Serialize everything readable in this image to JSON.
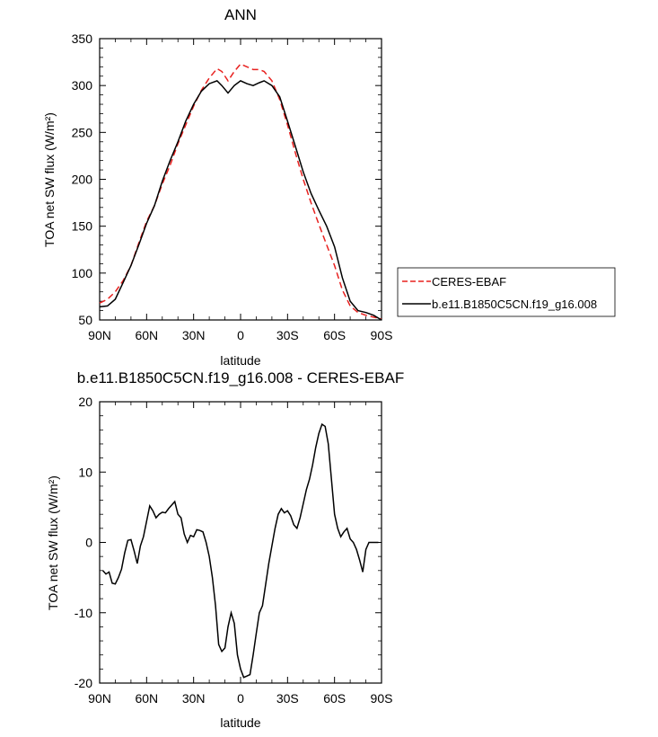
{
  "chart_data": [
    {
      "type": "line",
      "title": "ANN",
      "xlabel": "latitude",
      "ylabel": "TOA net SW flux (W/m²)",
      "xlim": [
        90,
        -90
      ],
      "ylim": [
        50,
        350
      ],
      "x_ticks": [
        90,
        60,
        30,
        0,
        -30,
        -60,
        -90
      ],
      "x_tick_labels": [
        "90N",
        "60N",
        "30N",
        "0",
        "30S",
        "60S",
        "90S"
      ],
      "y_ticks": [
        50,
        100,
        150,
        200,
        250,
        300,
        350
      ],
      "y_tick_labels": [
        "50",
        "100",
        "150",
        "200",
        "250",
        "300",
        "350"
      ],
      "legend_position": "right",
      "series": [
        {
          "name": "CERES-EBAF",
          "color": "#e8211f",
          "dash": "dashed",
          "x": [
            90,
            85,
            80,
            75,
            70,
            65,
            60,
            55,
            50,
            45,
            40,
            35,
            30,
            25,
            20,
            15,
            12,
            8,
            4,
            0,
            -4,
            -8,
            -12,
            -15,
            -20,
            -25,
            -30,
            -35,
            -40,
            -45,
            -50,
            -55,
            -60,
            -65,
            -70,
            -75,
            -80,
            -85,
            -90
          ],
          "y": [
            68,
            72,
            80,
            92,
            108,
            132,
            155,
            172,
            195,
            215,
            238,
            258,
            278,
            295,
            308,
            318,
            315,
            305,
            315,
            323,
            320,
            317,
            317,
            315,
            305,
            285,
            258,
            228,
            200,
            175,
            152,
            130,
            108,
            82,
            65,
            58,
            55,
            53,
            51
          ]
        },
        {
          "name": "b.e11.B1850C5CN.f19_g16.008",
          "color": "#000000",
          "dash": "solid",
          "x": [
            90,
            85,
            80,
            75,
            70,
            65,
            60,
            55,
            50,
            45,
            40,
            35,
            30,
            25,
            20,
            15,
            12,
            8,
            4,
            0,
            -4,
            -8,
            -12,
            -15,
            -20,
            -25,
            -30,
            -35,
            -40,
            -45,
            -50,
            -55,
            -60,
            -65,
            -70,
            -75,
            -80,
            -85,
            -90
          ],
          "y": [
            64,
            65,
            72,
            90,
            108,
            130,
            153,
            172,
            198,
            220,
            240,
            262,
            280,
            294,
            302,
            305,
            300,
            292,
            300,
            305,
            302,
            300,
            303,
            305,
            300,
            288,
            262,
            235,
            208,
            185,
            167,
            150,
            128,
            95,
            70,
            60,
            58,
            55,
            50
          ]
        }
      ]
    },
    {
      "type": "line",
      "title": "b.e11.B1850C5CN.f19_g16.008 - CERES-EBAF",
      "xlabel": "latitude",
      "ylabel": "TOA net SW flux (W/m²)",
      "xlim": [
        90,
        -90
      ],
      "ylim": [
        -20,
        20
      ],
      "x_ticks": [
        90,
        60,
        30,
        0,
        -30,
        -60,
        -90
      ],
      "x_tick_labels": [
        "90N",
        "60N",
        "30N",
        "0",
        "30S",
        "60S",
        "90S"
      ],
      "y_ticks": [
        -20,
        -10,
        0,
        10,
        20
      ],
      "y_tick_labels": [
        "-20",
        "-10",
        "0",
        "10",
        "20"
      ],
      "series": [
        {
          "color": "#000000",
          "dash": "solid",
          "x": [
            88,
            86,
            84,
            82,
            80,
            78,
            76,
            74,
            72,
            70,
            68,
            66,
            64,
            62,
            60,
            58,
            56,
            54,
            52,
            50,
            48,
            46,
            44,
            42,
            40,
            38,
            36,
            34,
            32,
            30,
            28,
            26,
            24,
            22,
            20,
            18,
            16,
            14,
            12,
            10,
            8,
            6,
            4,
            2,
            0,
            -2,
            -4,
            -6,
            -8,
            -10,
            -12,
            -14,
            -16,
            -18,
            -20,
            -22,
            -24,
            -26,
            -28,
            -30,
            -32,
            -34,
            -36,
            -38,
            -40,
            -42,
            -44,
            -46,
            -48,
            -50,
            -52,
            -54,
            -56,
            -58,
            -60,
            -62,
            -64,
            -66,
            -68,
            -70,
            -72,
            -74,
            -76,
            -78,
            -80,
            -82,
            -84,
            -86,
            -88
          ],
          "y": [
            -4,
            -4.5,
            -4.2,
            -5.8,
            -5.9,
            -5.0,
            -3.8,
            -1.5,
            0.3,
            0.4,
            -1.2,
            -3.0,
            -0.5,
            0.8,
            3.0,
            5.2,
            4.5,
            3.5,
            4.0,
            4.3,
            4.2,
            4.8,
            5.3,
            5.8,
            4.0,
            3.5,
            1.2,
            0.0,
            1.0,
            0.8,
            1.8,
            1.7,
            1.5,
            0.0,
            -2.0,
            -5.0,
            -9.0,
            -14.5,
            -15.5,
            -15.0,
            -12.0,
            -10.0,
            -11.5,
            -16.0,
            -18.0,
            -19.2,
            -19.0,
            -18.8,
            -16.0,
            -13.0,
            -10.0,
            -9.0,
            -6.0,
            -3.0,
            -0.5,
            2.0,
            4.0,
            4.8,
            4.2,
            4.5,
            3.8,
            2.5,
            2.0,
            3.5,
            5.5,
            7.5,
            9.0,
            11.0,
            13.5,
            15.5,
            16.8,
            16.5,
            14.0,
            9.0,
            4.0,
            2.0,
            0.8,
            1.5,
            2.0,
            0.5,
            0.0,
            -1.0,
            -2.5,
            -4.2,
            -1.0,
            0,
            0,
            0,
            0
          ]
        }
      ]
    }
  ]
}
